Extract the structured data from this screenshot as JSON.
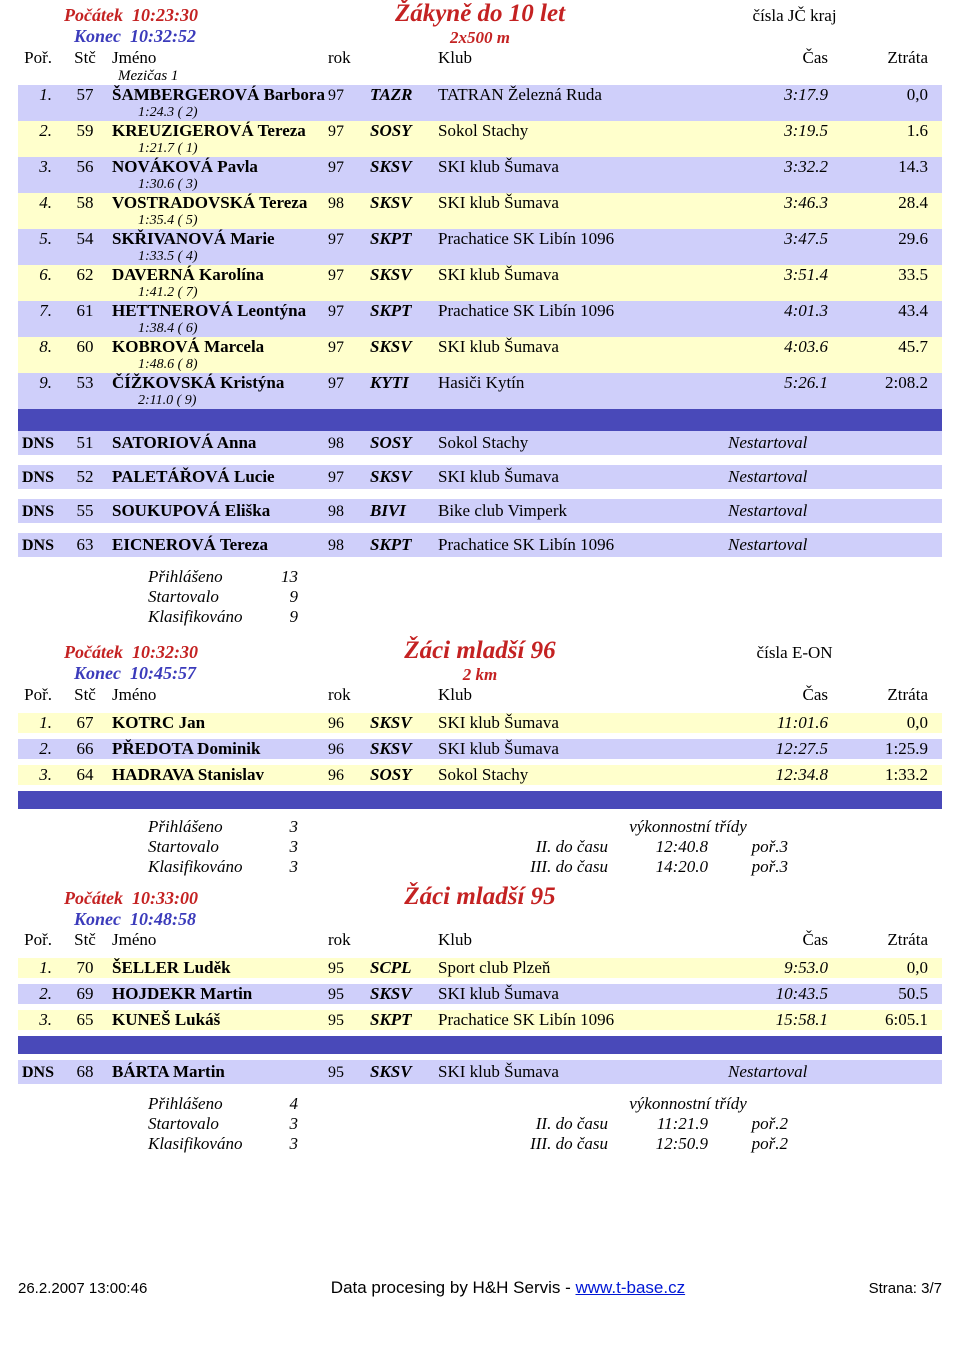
{
  "footer": {
    "left": "26.2.2007 13:00:46",
    "mid_a": "Data procesing by H&H Servis - ",
    "mid_b": "www.t-base.cz",
    "right": "Strana: 3/7"
  },
  "lbl": {
    "por": "Poř.",
    "stc": "Stč",
    "jmeno": "Jméno",
    "rok": "rok",
    "klub": "Klub",
    "cas": "Čas",
    "ztrata": "Ztráta",
    "pocatek": "Počátek",
    "konec": "Konec",
    "prihl": "Přihlášeno",
    "start": "Startovalo",
    "klas": "Klasifikováno",
    "vt": "výkonnostní třídy",
    "mezi": "Mezičas 1"
  },
  "sec1": {
    "pocatek": "10:23:30",
    "konec": "10:32:52",
    "title": "Žákyně do 10 let",
    "sub": "2x500 m",
    "right": "čísla JČ kraj",
    "rows": [
      {
        "por": "1.",
        "stc": "57",
        "name": "ŠAMBERGEROVÁ Barbora",
        "rok": "97",
        "code": "TAZR",
        "club": "TATRAN Železná Ruda",
        "cas": "3:17.9",
        "ztr": "0,0",
        "sub": "1:24.3   ( 2)",
        "band": "lav"
      },
      {
        "por": "2.",
        "stc": "59",
        "name": "KREUZIGEROVÁ Tereza",
        "rok": "97",
        "code": "SOSY",
        "club": "Sokol Stachy",
        "cas": "3:19.5",
        "ztr": "1.6",
        "sub": "1:21.7   ( 1)",
        "band": "yel"
      },
      {
        "por": "3.",
        "stc": "56",
        "name": "NOVÁKOVÁ Pavla",
        "rok": "97",
        "code": "SKSV",
        "club": "SKI klub Šumava",
        "cas": "3:32.2",
        "ztr": "14.3",
        "sub": "1:30.6   ( 3)",
        "band": "lav"
      },
      {
        "por": "4.",
        "stc": "58",
        "name": "VOSTRADOVSKÁ Tereza",
        "rok": "98",
        "code": "SKSV",
        "club": "SKI klub Šumava",
        "cas": "3:46.3",
        "ztr": "28.4",
        "sub": "1:35.4   ( 5)",
        "band": "yel"
      },
      {
        "por": "5.",
        "stc": "54",
        "name": "SKŘIVANOVÁ Marie",
        "rok": "97",
        "code": "SKPT",
        "club": "Prachatice SK Libín 1096",
        "cas": "3:47.5",
        "ztr": "29.6",
        "sub": "1:33.5   ( 4)",
        "band": "lav"
      },
      {
        "por": "6.",
        "stc": "62",
        "name": "DAVERNÁ Karolína",
        "rok": "97",
        "code": "SKSV",
        "club": "SKI klub Šumava",
        "cas": "3:51.4",
        "ztr": "33.5",
        "sub": "1:41.2   ( 7)",
        "band": "yel"
      },
      {
        "por": "7.",
        "stc": "61",
        "name": "HETTNEROVÁ Leontýna",
        "rok": "97",
        "code": "SKPT",
        "club": "Prachatice SK Libín 1096",
        "cas": "4:01.3",
        "ztr": "43.4",
        "sub": "1:38.4   ( 6)",
        "band": "lav"
      },
      {
        "por": "8.",
        "stc": "60",
        "name": "KOBROVÁ Marcela",
        "rok": "97",
        "code": "SKSV",
        "club": "SKI klub Šumava",
        "cas": "4:03.6",
        "ztr": "45.7",
        "sub": "1:48.6   ( 8)",
        "band": "yel"
      },
      {
        "por": "9.",
        "stc": "53",
        "name": "ČÍŽKOVSKÁ Kristýna",
        "rok": "97",
        "code": "KYTI",
        "club": "Hasiči Kytín",
        "cas": "5:26.1",
        "ztr": "2:08.2",
        "sub": "2:11.0   ( 9)",
        "band": "lav"
      }
    ],
    "dns": [
      {
        "por": "DNS",
        "stc": "51",
        "name": "SATORIOVÁ Anna",
        "rok": "98",
        "code": "SOSY",
        "club": "Sokol Stachy",
        "cas": "Nestartoval"
      },
      {
        "por": "DNS",
        "stc": "52",
        "name": "PALETÁŘOVÁ Lucie",
        "rok": "97",
        "code": "SKSV",
        "club": "SKI klub Šumava",
        "cas": "Nestartoval"
      },
      {
        "por": "DNS",
        "stc": "55",
        "name": "SOUKUPOVÁ Eliška",
        "rok": "98",
        "code": "BIVI",
        "club": "Bike club Vimperk",
        "cas": "Nestartoval"
      },
      {
        "por": "DNS",
        "stc": "63",
        "name": "EICNEROVÁ Tereza",
        "rok": "98",
        "code": "SKPT",
        "club": "Prachatice SK Libín 1096",
        "cas": "Nestartoval"
      }
    ],
    "stats": {
      "prihl": "13",
      "start": "9",
      "klas": "9"
    }
  },
  "sec2": {
    "pocatek": "10:32:30",
    "konec": "10:45:57",
    "title": "Žáci mladší 96",
    "sub": "2 km",
    "right": "čísla E-ON",
    "rows": [
      {
        "por": "1.",
        "stc": "67",
        "name": "KOTRC Jan",
        "rok": "96",
        "code": "SKSV",
        "club": "SKI klub Šumava",
        "cas": "11:01.6",
        "ztr": "0,0",
        "band": "yel"
      },
      {
        "por": "2.",
        "stc": "66",
        "name": "PŘEDOTA Dominik",
        "rok": "96",
        "code": "SKSV",
        "club": "SKI klub Šumava",
        "cas": "12:27.5",
        "ztr": "1:25.9",
        "band": "lav"
      },
      {
        "por": "3.",
        "stc": "64",
        "name": "HADRAVA Stanislav",
        "rok": "96",
        "code": "SOSY",
        "club": "Sokol Stachy",
        "cas": "12:34.8",
        "ztr": "1:33.2",
        "band": "yel"
      }
    ],
    "stats": {
      "prihl": "3",
      "start": "3",
      "klas": "3"
    },
    "vt": [
      {
        "a": "II. do času",
        "b": "12:40.8",
        "c": "poř.3"
      },
      {
        "a": "III. do času",
        "b": "14:20.0",
        "c": "poř.3"
      }
    ]
  },
  "sec3": {
    "pocatek": "10:33:00",
    "konec": "10:48:58",
    "title": "Žáci mladší 95",
    "rows": [
      {
        "por": "1.",
        "stc": "70",
        "name": "ŠELLER Luděk",
        "rok": "95",
        "code": "SCPL",
        "club": "Sport club Plzeň",
        "cas": "9:53.0",
        "ztr": "0,0",
        "band": "yel"
      },
      {
        "por": "2.",
        "stc": "69",
        "name": "HOJDEKR Martin",
        "rok": "95",
        "code": "SKSV",
        "club": "SKI klub Šumava",
        "cas": "10:43.5",
        "ztr": "50.5",
        "band": "lav"
      },
      {
        "por": "3.",
        "stc": "65",
        "name": "KUNEŠ Lukáš",
        "rok": "95",
        "code": "SKPT",
        "club": "Prachatice SK Libín 1096",
        "cas": "15:58.1",
        "ztr": "6:05.1",
        "band": "yel"
      }
    ],
    "dns": [
      {
        "por": "DNS",
        "stc": "68",
        "name": "BÁRTA Martin",
        "rok": "95",
        "code": "SKSV",
        "club": "SKI klub Šumava",
        "cas": "Nestartoval"
      }
    ],
    "stats": {
      "prihl": "4",
      "start": "3",
      "klas": "3"
    },
    "vt": [
      {
        "a": "II. do času",
        "b": "11:21.9",
        "c": "poř.2"
      },
      {
        "a": "III. do času",
        "b": "12:50.9",
        "c": "poř.2"
      }
    ]
  }
}
